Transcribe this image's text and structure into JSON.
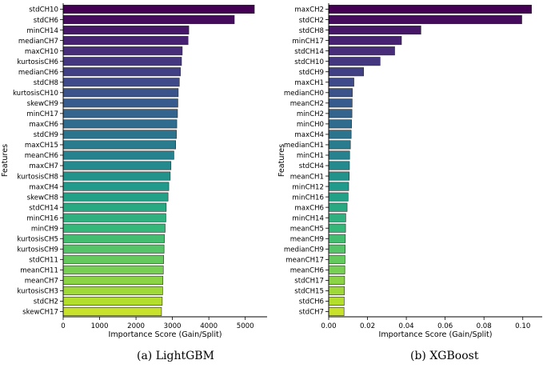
{
  "chart_data": [
    {
      "type": "bar",
      "orientation": "horizontal",
      "caption": "(a)  LightGBM",
      "xlabel": "Importance Score (Gain/Split)",
      "ylabel": "Features",
      "xlim": [
        0,
        5600
      ],
      "xticks": [
        0,
        1000,
        2000,
        3000,
        4000,
        5000
      ],
      "xtick_labels": [
        "0",
        "1000",
        "2000",
        "3000",
        "4000",
        "5000"
      ],
      "colormap": "viridis",
      "grid": false,
      "categories": [
        "stdCH10",
        "stdCH6",
        "minCH14",
        "medianCH7",
        "maxCH10",
        "kurtosisCH6",
        "medianCH6",
        "stdCH8",
        "kurtosisCH10",
        "skewCH9",
        "minCH17",
        "maxCH6",
        "stdCH9",
        "maxCH15",
        "meanCH6",
        "maxCH7",
        "kurtosisCH8",
        "maxCH4",
        "skewCH8",
        "stdCH14",
        "minCH16",
        "minCH9",
        "kurtosisCH5",
        "kurtosisCH9",
        "stdCH11",
        "meanCH11",
        "meanCH7",
        "kurtosisCH3",
        "stdCH2",
        "skewCH17"
      ],
      "values": [
        5250,
        4700,
        3450,
        3430,
        3270,
        3250,
        3220,
        3190,
        3160,
        3150,
        3140,
        3120,
        3110,
        3090,
        3040,
        2960,
        2940,
        2900,
        2880,
        2830,
        2820,
        2800,
        2780,
        2770,
        2760,
        2750,
        2740,
        2730,
        2720,
        2700
      ]
    },
    {
      "type": "bar",
      "orientation": "horizontal",
      "caption": "(b)  XGBoost",
      "xlabel": "Importance Score (Gain/Split)",
      "ylabel": "Features",
      "xlim": [
        0,
        0.11
      ],
      "xticks": [
        0,
        0.02,
        0.04,
        0.06,
        0.08,
        0.1
      ],
      "xtick_labels": [
        "0.00",
        "0.02",
        "0.04",
        "0.06",
        "0.08",
        "0.10"
      ],
      "colormap": "viridis",
      "grid": false,
      "categories": [
        "maxCH2",
        "stdCH2",
        "stdCH8",
        "minCH17",
        "stdCH14",
        "stdCH10",
        "stdCH9",
        "maxCH1",
        "medianCH0",
        "meanCH2",
        "minCH2",
        "minCH0",
        "maxCH4",
        "medianCH1",
        "minCH1",
        "stdCH4",
        "meanCH1",
        "minCH12",
        "minCH16",
        "maxCH6",
        "minCH14",
        "meanCH5",
        "meanCH9",
        "medianCH9",
        "meanCH17",
        "meanCH6",
        "stdCH17",
        "stdCH15",
        "stdCH6",
        "stdCH7"
      ],
      "values": [
        0.1045,
        0.0995,
        0.0475,
        0.0375,
        0.034,
        0.0265,
        0.018,
        0.013,
        0.0122,
        0.0121,
        0.012,
        0.0118,
        0.0116,
        0.0112,
        0.0108,
        0.0107,
        0.0106,
        0.0103,
        0.01,
        0.0095,
        0.0088,
        0.0087,
        0.0086,
        0.0085,
        0.0084,
        0.0083,
        0.0082,
        0.0081,
        0.008,
        0.0079
      ]
    }
  ]
}
